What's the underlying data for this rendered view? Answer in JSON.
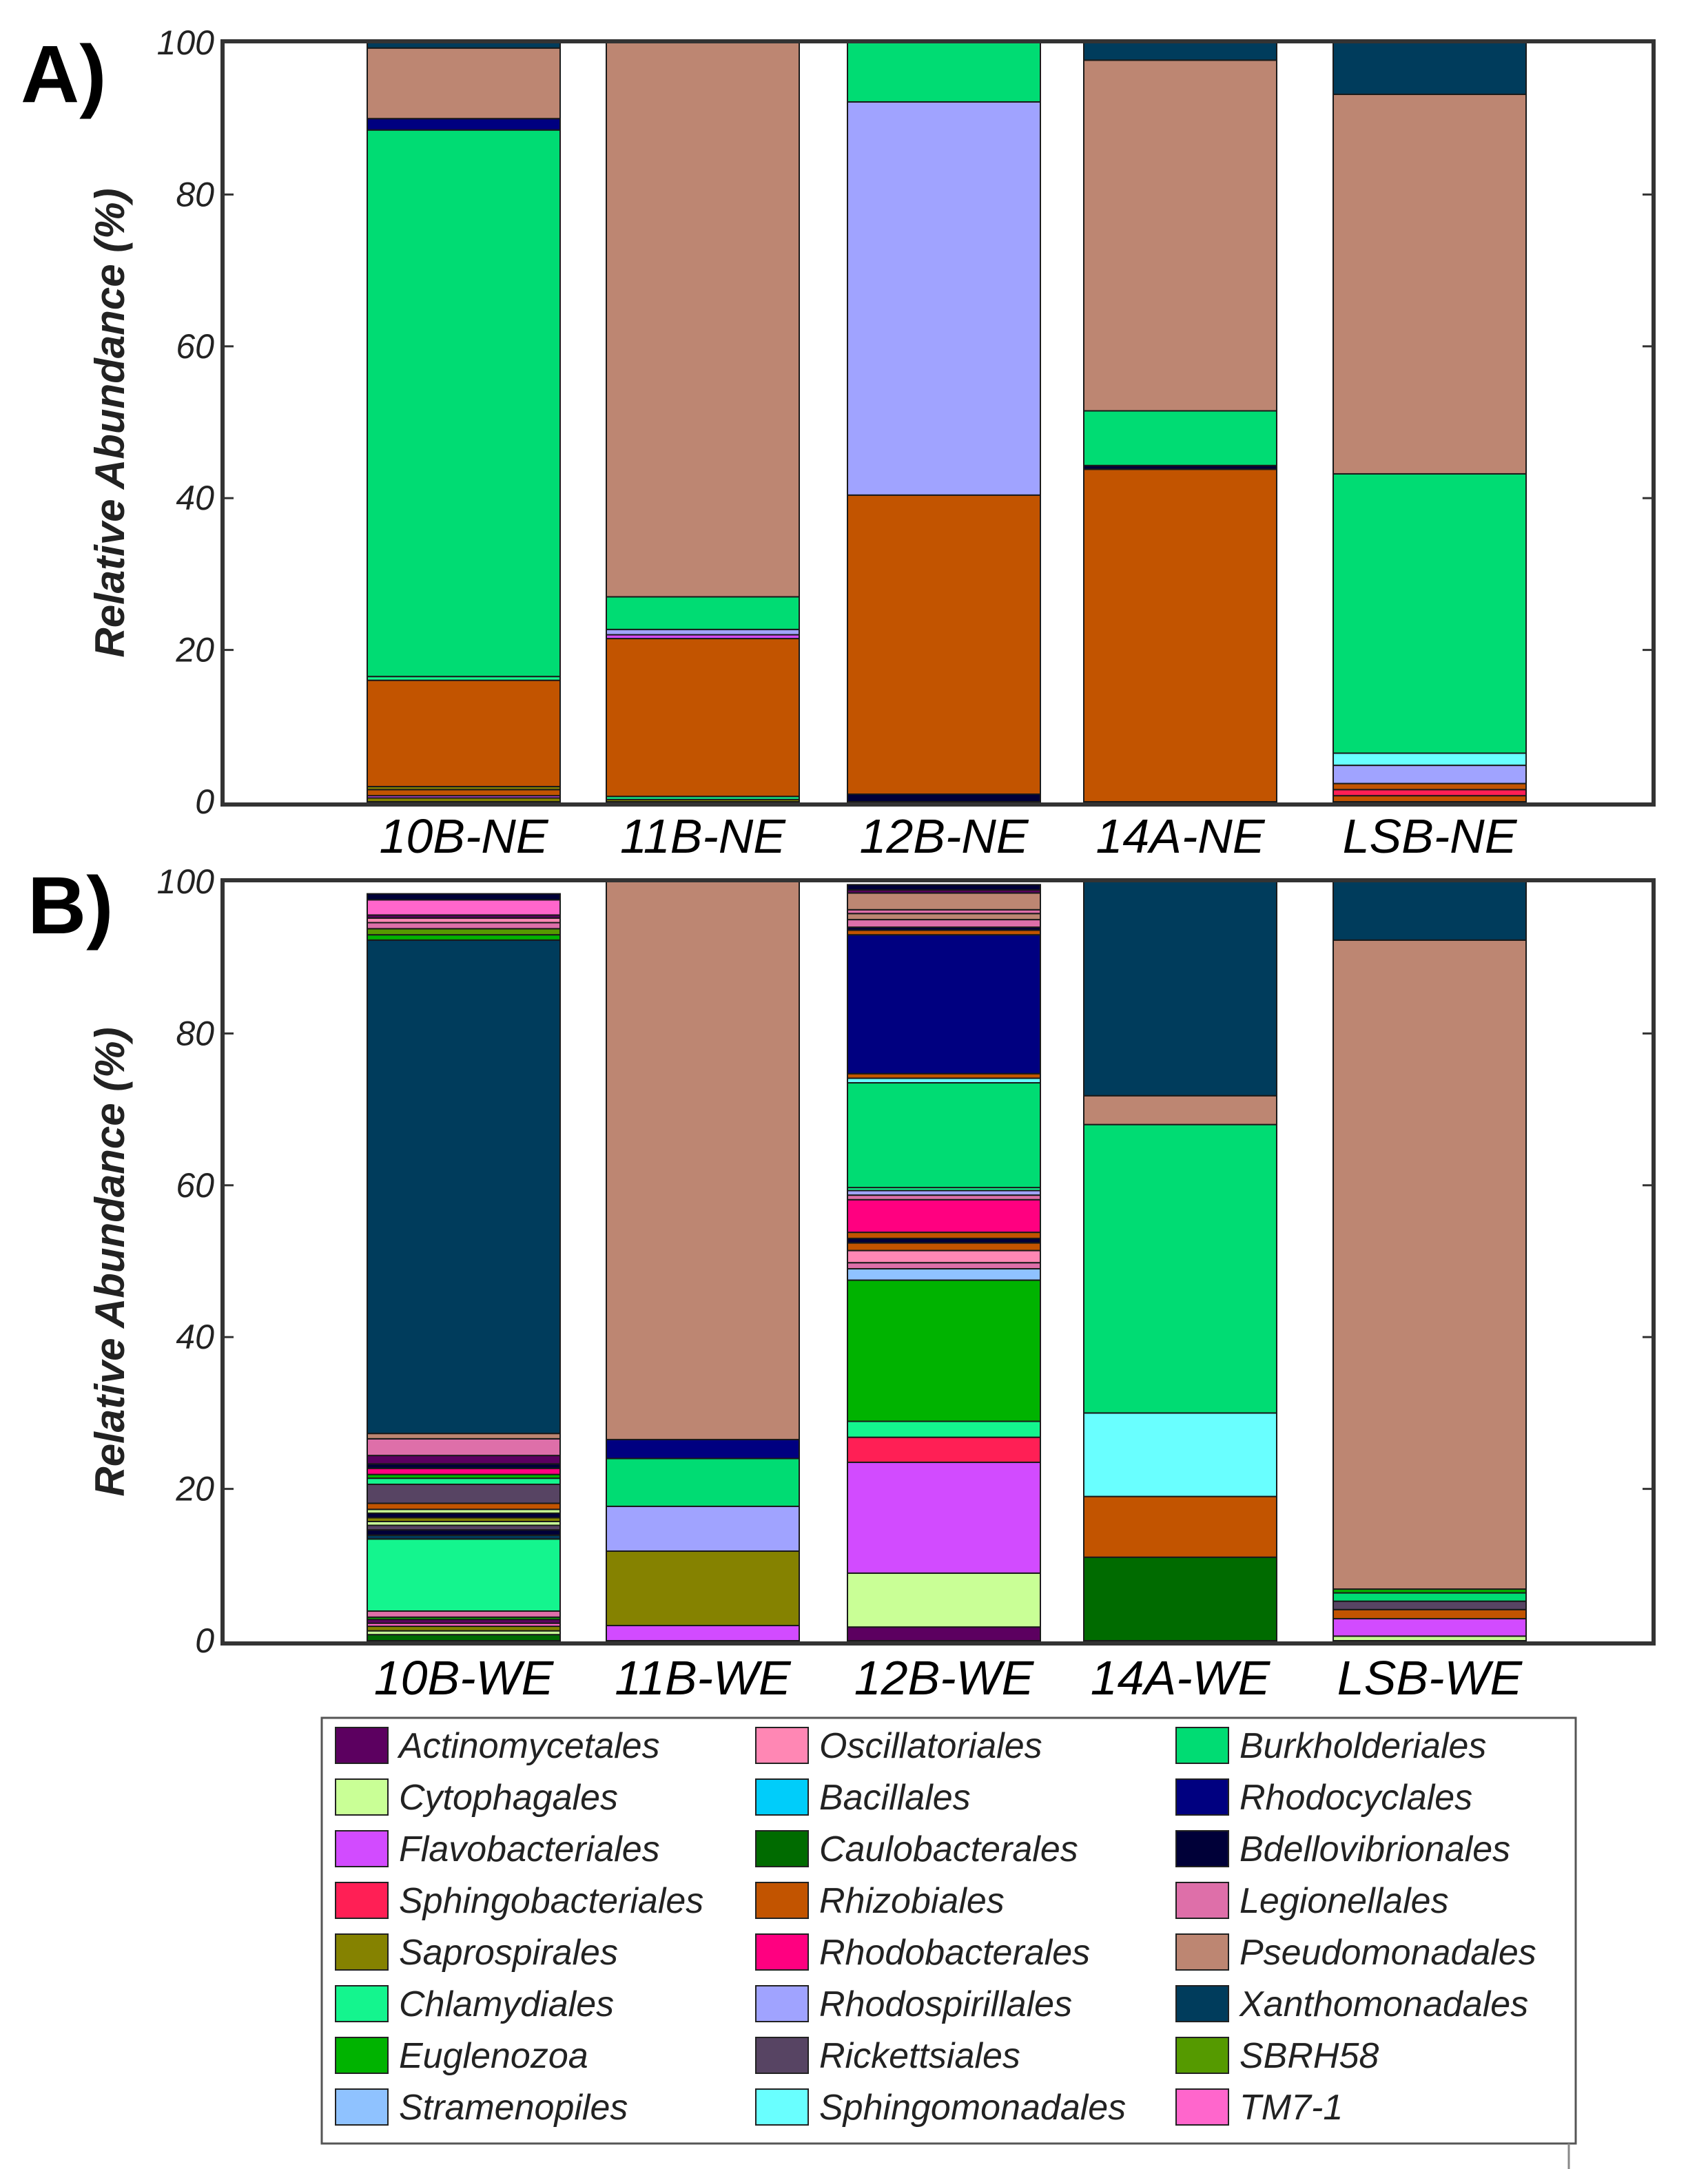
{
  "figure": {
    "legend": [
      {
        "name": "Actinomycetales",
        "color": "#5c0060"
      },
      {
        "name": "Cytophagales",
        "color": "#c9ff96"
      },
      {
        "name": "Flavobacteriales",
        "color": "#d24bff"
      },
      {
        "name": "Sphingobacteriales",
        "color": "#ff1f55"
      },
      {
        "name": "Saprospirales",
        "color": "#858200"
      },
      {
        "name": "Chlamydiales",
        "color": "#14f58e"
      },
      {
        "name": "Euglenozoa",
        "color": "#00b300"
      },
      {
        "name": "Stramenopiles",
        "color": "#8fc2ff"
      },
      {
        "name": "Oscillatoriales",
        "color": "#ff87b4"
      },
      {
        "name": "Bacillales",
        "color": "#00cdfa"
      },
      {
        "name": "Caulobacterales",
        "color": "#006b00"
      },
      {
        "name": "Rhizobiales",
        "color": "#c25400"
      },
      {
        "name": "Rhodobacterales",
        "color": "#ff0080"
      },
      {
        "name": "Rhodospirillales",
        "color": "#a0a3ff"
      },
      {
        "name": "Rickettsiales",
        "color": "#574463"
      },
      {
        "name": "Sphingomonadales",
        "color": "#69ffff"
      },
      {
        "name": "Burkholderiales",
        "color": "#00dc73"
      },
      {
        "name": "Rhodocyclales",
        "color": "#000080"
      },
      {
        "name": "Bdellovibrionales",
        "color": "#000038"
      },
      {
        "name": "Legionellales",
        "color": "#de6fa9"
      },
      {
        "name": "Pseudomonadales",
        "color": "#bd8672"
      },
      {
        "name": "Xanthomonadales",
        "color": "#003c5c"
      },
      {
        "name": "SBRH58",
        "color": "#559a00"
      },
      {
        "name": "TM7-1",
        "color": "#ff66cc"
      }
    ]
  },
  "chart_data": [
    {
      "type": "bar",
      "stacked": true,
      "panel_label": "A)",
      "ylabel": "Relative Abundance (%)",
      "ylim": [
        0,
        100
      ],
      "yticks": [
        "0",
        "20",
        "40",
        "60",
        "80",
        "100"
      ],
      "categories": [
        "10B-NE",
        "11B-NE",
        "12B-NE",
        "14A-NE",
        "LSB-NE"
      ],
      "bars": [
        {
          "category": "10B-NE",
          "segments": [
            {
              "order": "Saprospirales",
              "value": 0.5
            },
            {
              "order": "Flavobacteriales",
              "value": 0.3
            },
            {
              "order": "Rhizobiales",
              "value": 0.8
            },
            {
              "order": "Saprospirales",
              "value": 0.4
            },
            {
              "order": "Rhizobiales",
              "value": 14.0
            },
            {
              "order": "Chlamydiales",
              "value": 0.5
            },
            {
              "order": "Burkholderiales",
              "value": 72.0
            },
            {
              "order": "Rhodocyclales",
              "value": 1.5
            },
            {
              "order": "Pseudomonadales",
              "value": 9.3
            },
            {
              "order": "Xanthomonadales",
              "value": 0.7
            }
          ]
        },
        {
          "category": "11B-NE",
          "segments": [
            {
              "order": "Saprospirales",
              "value": 0.3
            },
            {
              "order": "Chlamydiales",
              "value": 0.4
            },
            {
              "order": "Rhizobiales",
              "value": 20.8
            },
            {
              "order": "Flavobacteriales",
              "value": 0.5
            },
            {
              "order": "Rhodospirillales",
              "value": 0.7
            },
            {
              "order": "Burkholderiales",
              "value": 4.3
            },
            {
              "order": "Pseudomonadales",
              "value": 73.0
            }
          ]
        },
        {
          "category": "12B-NE",
          "segments": [
            {
              "order": "Bdellovibrionales",
              "value": 1.0
            },
            {
              "order": "Rhizobiales",
              "value": 39.4
            },
            {
              "order": "Rhodospirillales",
              "value": 51.8
            },
            {
              "order": "Burkholderiales",
              "value": 7.8
            }
          ]
        },
        {
          "category": "14A-NE",
          "segments": [
            {
              "order": "Rhizobiales",
              "value": 43.8
            },
            {
              "order": "Bdellovibrionales",
              "value": 0.5
            },
            {
              "order": "Burkholderiales",
              "value": 7.2
            },
            {
              "order": "Pseudomonadales",
              "value": 46.2
            },
            {
              "order": "Xanthomonadales",
              "value": 2.3
            }
          ]
        },
        {
          "category": "LSB-NE",
          "segments": [
            {
              "order": "Rhizobiales",
              "value": 0.8
            },
            {
              "order": "Sphingobacteriales",
              "value": 0.8
            },
            {
              "order": "Rhizobiales",
              "value": 0.8
            },
            {
              "order": "Rhodospirillales",
              "value": 2.4
            },
            {
              "order": "Sphingomonadales",
              "value": 1.6
            },
            {
              "order": "Burkholderiales",
              "value": 36.8
            },
            {
              "order": "Pseudomonadales",
              "value": 50.0
            },
            {
              "order": "Xanthomonadales",
              "value": 6.8
            }
          ]
        }
      ]
    },
    {
      "type": "bar",
      "stacked": true,
      "panel_label": "B)",
      "ylabel": "Relative Abundance (%)",
      "ylim": [
        0,
        100
      ],
      "yticks": [
        "0",
        "20",
        "40",
        "60",
        "80",
        "100"
      ],
      "categories": [
        "10B-WE",
        "11B-WE",
        "12B-WE",
        "14A-WE",
        "LSB-WE"
      ],
      "bars": [
        {
          "category": "10B-WE",
          "segments": [
            {
              "order": "Caulobacterales",
              "value": 0.8
            },
            {
              "order": "Cytophagales",
              "value": 0.5
            },
            {
              "order": "Saprospirales",
              "value": 0.6
            },
            {
              "order": "TM7-1",
              "value": 0.4
            },
            {
              "order": "Actinomycetales",
              "value": 0.5
            },
            {
              "order": "Euglenozoa",
              "value": 0.3
            },
            {
              "order": "Legionellales",
              "value": 0.8
            },
            {
              "order": "Chlamydiales",
              "value": 9.5
            },
            {
              "order": "Xanthomonadales",
              "value": 0.5
            },
            {
              "order": "Bdellovibrionales",
              "value": 0.7
            },
            {
              "order": "Rickettsiales",
              "value": 0.6
            },
            {
              "order": "Cytophagales",
              "value": 0.5
            },
            {
              "order": "Saprospirales",
              "value": 0.5
            },
            {
              "order": "Bdellovibrionales",
              "value": 0.6
            },
            {
              "order": "Cytophagales",
              "value": 0.5
            },
            {
              "order": "Rhizobiales",
              "value": 0.8
            },
            {
              "order": "Rickettsiales",
              "value": 2.5
            },
            {
              "order": "Chlamydiales",
              "value": 0.8
            },
            {
              "order": "Euglenozoa",
              "value": 0.5
            },
            {
              "order": "Rhodobacterales",
              "value": 0.8
            },
            {
              "order": "Bdellovibrionales",
              "value": 0.6
            },
            {
              "order": "Actinomycetales",
              "value": 1.1
            },
            {
              "order": "Legionellales",
              "value": 2.2
            },
            {
              "order": "Pseudomonadales",
              "value": 0.7
            },
            {
              "order": "Xanthomonadales",
              "value": 65.0
            },
            {
              "order": "Euglenozoa",
              "value": 0.7
            },
            {
              "order": "SBRH58",
              "value": 0.8
            },
            {
              "order": "Legionellales",
              "value": 0.8
            },
            {
              "order": "Oscillatoriales",
              "value": 0.6
            },
            {
              "order": "Actinomycetales",
              "value": 0.4
            },
            {
              "order": "TM7-1",
              "value": 2.0
            },
            {
              "order": "Bdellovibrionales",
              "value": 0.8
            }
          ]
        },
        {
          "category": "11B-WE",
          "segments": [
            {
              "order": "Flavobacteriales",
              "value": 2.0
            },
            {
              "order": "Saprospirales",
              "value": 9.8
            },
            {
              "order": "Rhodospirillales",
              "value": 5.9
            },
            {
              "order": "Burkholderiales",
              "value": 6.3
            },
            {
              "order": "Rhodocyclales",
              "value": 2.5
            },
            {
              "order": "Pseudomonadales",
              "value": 73.5
            }
          ]
        },
        {
          "category": "12B-WE",
          "segments": [
            {
              "order": "Actinomycetales",
              "value": 1.8
            },
            {
              "order": "Cytophagales",
              "value": 7.1
            },
            {
              "order": "Flavobacteriales",
              "value": 14.6
            },
            {
              "order": "Sphingobacteriales",
              "value": 3.3
            },
            {
              "order": "Chlamydiales",
              "value": 2.1
            },
            {
              "order": "Euglenozoa",
              "value": 18.6
            },
            {
              "order": "Stramenopiles",
              "value": 1.5
            },
            {
              "order": "Legionellales",
              "value": 0.8
            },
            {
              "order": "Oscillatoriales",
              "value": 1.6
            },
            {
              "order": "Rhizobiales",
              "value": 1.0
            },
            {
              "order": "Bdellovibrionales",
              "value": 0.6
            },
            {
              "order": "Rhizobiales",
              "value": 0.8
            },
            {
              "order": "Rhodobacterales",
              "value": 4.3
            },
            {
              "order": "Legionellales",
              "value": 0.6
            },
            {
              "order": "Rhodospirillales",
              "value": 0.6
            },
            {
              "order": "Chlamydiales",
              "value": 0.4
            },
            {
              "order": "Burkholderiales",
              "value": 13.8
            },
            {
              "order": "Sphingomonadales",
              "value": 0.6
            },
            {
              "order": "Rhizobiales",
              "value": 0.6
            },
            {
              "order": "Rhodocyclales",
              "value": 18.3
            },
            {
              "order": "Rhizobiales",
              "value": 0.6
            },
            {
              "order": "Bdellovibrionales",
              "value": 0.4
            },
            {
              "order": "Legionellales",
              "value": 1.0
            },
            {
              "order": "Pseudomonadales",
              "value": 0.8
            },
            {
              "order": "Legionellales",
              "value": 0.5
            },
            {
              "order": "Pseudomonadales",
              "value": 2.2
            },
            {
              "order": "Actinomycetales",
              "value": 0.4
            },
            {
              "order": "Bdellovibrionales",
              "value": 0.7
            }
          ]
        },
        {
          "category": "14A-WE",
          "segments": [
            {
              "order": "Caulobacterales",
              "value": 11.0
            },
            {
              "order": "Rhizobiales",
              "value": 8.0
            },
            {
              "order": "Sphingomonadales",
              "value": 11.0
            },
            {
              "order": "Burkholderiales",
              "value": 38.0
            },
            {
              "order": "Pseudomonadales",
              "value": 3.8
            },
            {
              "order": "Xanthomonadales",
              "value": 28.2
            }
          ]
        },
        {
          "category": "LSB-WE",
          "segments": [
            {
              "order": "Cytophagales",
              "value": 0.6
            },
            {
              "order": "Flavobacteriales",
              "value": 2.3
            },
            {
              "order": "Rhizobiales",
              "value": 1.2
            },
            {
              "order": "Rickettsiales",
              "value": 1.1
            },
            {
              "order": "Burkholderiales",
              "value": 1.1
            },
            {
              "order": "Euglenozoa",
              "value": 0.5
            },
            {
              "order": "Pseudomonadales",
              "value": 85.5
            },
            {
              "order": "Xanthomonadales",
              "value": 7.7
            }
          ]
        }
      ]
    }
  ]
}
